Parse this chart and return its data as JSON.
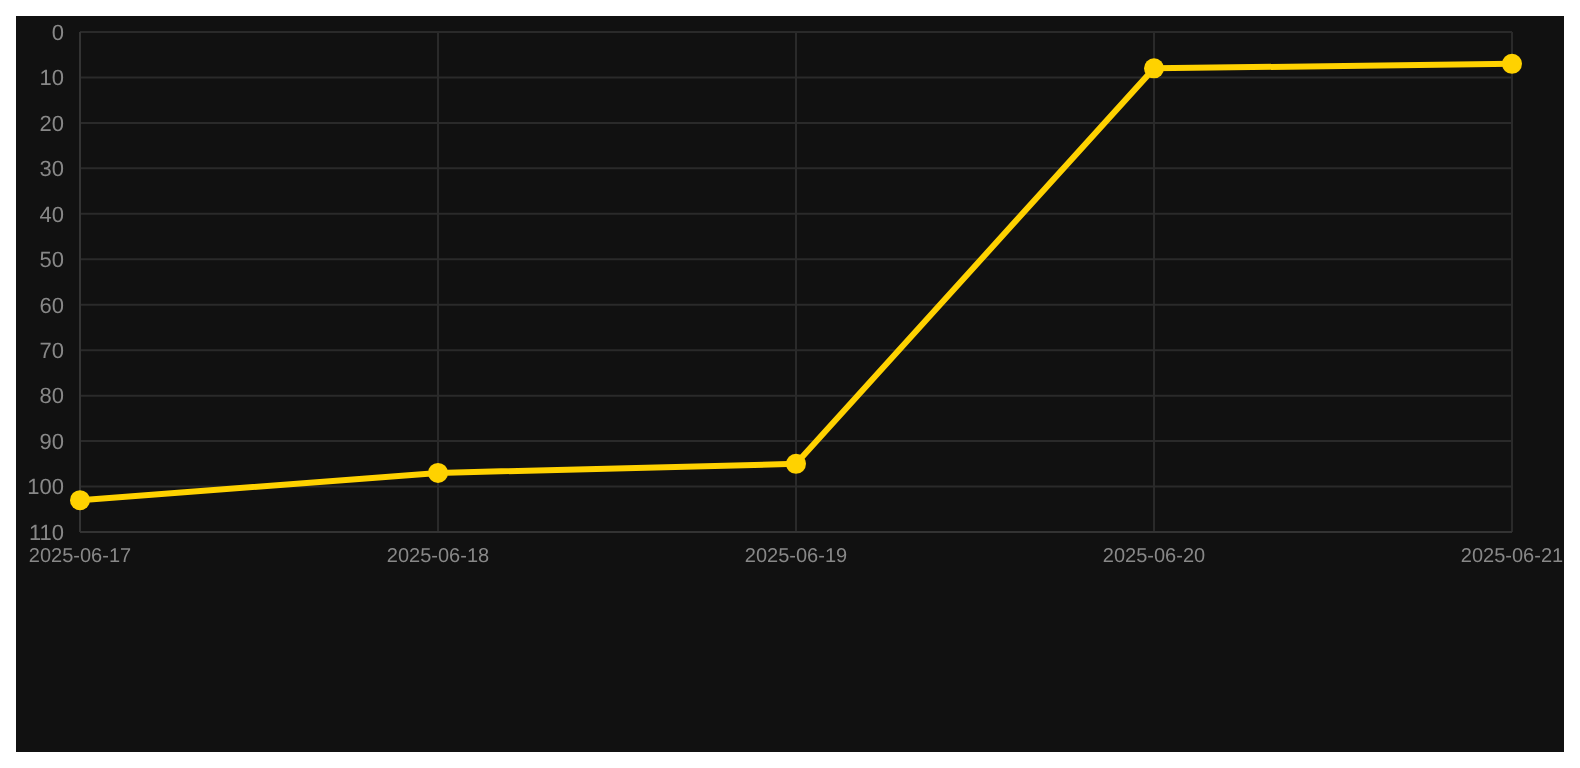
{
  "chart_data": {
    "type": "line",
    "categories": [
      "2025-06-17",
      "2025-06-18",
      "2025-06-19",
      "2025-06-20",
      "2025-06-21"
    ],
    "series": [
      {
        "color": "#ffd200",
        "values": [
          103,
          97,
          95,
          8,
          7
        ]
      }
    ],
    "ylim": [
      110,
      0
    ],
    "yticks": [
      0,
      10,
      20,
      30,
      40,
      50,
      60,
      70,
      80,
      90,
      100,
      110
    ],
    "grid": true,
    "marker": "circle",
    "line_style": "solid"
  }
}
